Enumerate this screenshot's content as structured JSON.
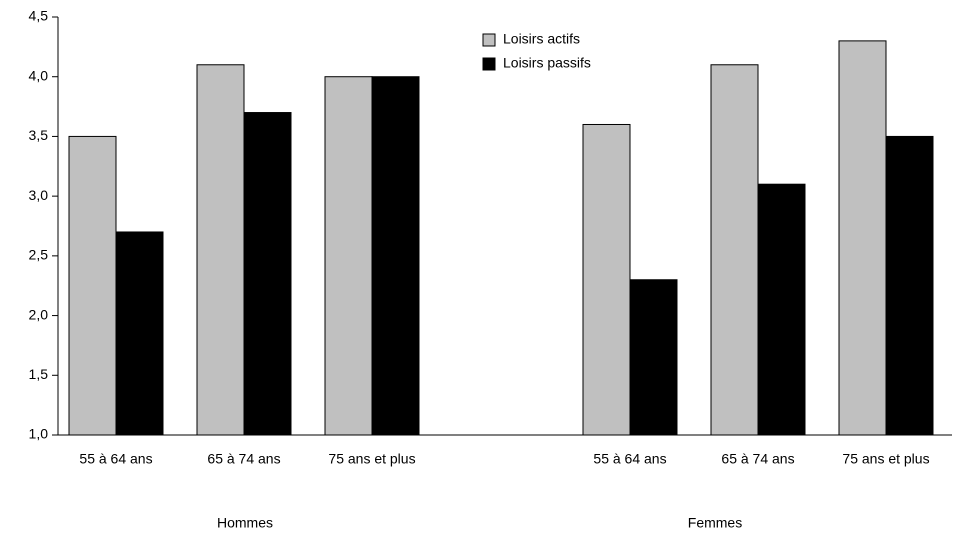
{
  "chart_data": {
    "type": "bar",
    "categories": [
      "55 à 64 ans",
      "65 à 74 ans",
      "75 ans et plus",
      "55 à 64 ans",
      "65 à 74 ans",
      "75 ans et plus"
    ],
    "group_labels": [
      "Hommes",
      "Femmes"
    ],
    "series": [
      {
        "name": "Loisirs actifs",
        "color": "#c0c0c0",
        "values": [
          3.5,
          4.1,
          4.0,
          3.6,
          4.1,
          4.3
        ]
      },
      {
        "name": "Loisirs passifs",
        "color": "#000000",
        "values": [
          2.7,
          3.7,
          4.0,
          2.3,
          3.1,
          3.5
        ]
      }
    ],
    "ylim": [
      1.0,
      4.5
    ],
    "yticks": [
      {
        "value": 1.0,
        "label": "1,0"
      },
      {
        "value": 1.5,
        "label": "1,5"
      },
      {
        "value": 2.0,
        "label": "2,0"
      },
      {
        "value": 2.5,
        "label": "2,5"
      },
      {
        "value": 3.0,
        "label": "3,0"
      },
      {
        "value": 3.5,
        "label": "3,5"
      },
      {
        "value": 4.0,
        "label": "4,0"
      },
      {
        "value": 4.5,
        "label": "4,5"
      }
    ],
    "grid": false,
    "legend": "top-right"
  }
}
